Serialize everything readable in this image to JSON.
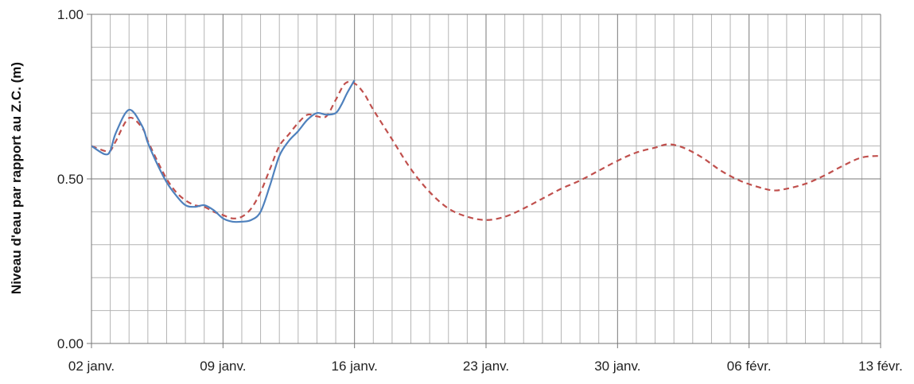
{
  "chart_data": {
    "type": "line",
    "title": "",
    "xlabel": "",
    "ylabel": "Niveau d'eau par rapport au Z.C. (m)",
    "x_tick_labels": [
      "02 janv.",
      "09 janv.",
      "16 janv.",
      "23 janv.",
      "30 janv.",
      "06 févr.",
      "13 févr."
    ],
    "x_tick_days": [
      0,
      7,
      14,
      21,
      28,
      35,
      42
    ],
    "y_tick_labels": [
      "0.00",
      "0.50",
      "1.00"
    ],
    "y_ticks": [
      0,
      0.5,
      1.0
    ],
    "xlim_days": [
      0,
      42
    ],
    "ylim": [
      0,
      1.0
    ],
    "grid": true,
    "legend": "none",
    "series": [
      {
        "color": "#4f81bd",
        "style": "solid",
        "x_days": [
          0,
          0.7,
          1.0,
          1.3,
          2.0,
          2.7,
          3.0,
          3.5,
          4.0,
          4.5,
          5.0,
          5.5,
          6.0,
          6.5,
          7.0,
          7.5,
          8.0,
          8.5,
          9.0,
          9.5,
          10.0,
          10.5,
          11.0,
          11.5,
          12.0,
          12.5,
          13.0,
          13.3,
          13.6,
          14.0
        ],
        "y": [
          0.6,
          0.575,
          0.585,
          0.64,
          0.71,
          0.66,
          0.61,
          0.545,
          0.49,
          0.45,
          0.42,
          0.415,
          0.42,
          0.405,
          0.38,
          0.37,
          0.37,
          0.375,
          0.4,
          0.48,
          0.57,
          0.615,
          0.645,
          0.68,
          0.7,
          0.695,
          0.7,
          0.725,
          0.76,
          0.8
        ]
      },
      {
        "color": "#c0504d",
        "style": "dashed",
        "x_days": [
          0,
          0.7,
          1.0,
          1.3,
          2.0,
          2.7,
          3.0,
          3.5,
          4.0,
          4.5,
          5.0,
          5.5,
          6.0,
          6.5,
          7.0,
          7.5,
          8.0,
          8.5,
          9.0,
          9.5,
          10.0,
          10.5,
          11.0,
          11.5,
          12.0,
          12.5,
          13.0,
          13.5,
          14.0,
          14.5,
          15.0,
          16.0,
          17.0,
          18.0,
          19.0,
          20.0,
          21.0,
          22.0,
          23.0,
          24.0,
          25.0,
          26.0,
          27.0,
          28.0,
          29.0,
          30.0,
          30.7,
          31.5,
          32.5,
          33.5,
          34.5,
          35.5,
          36.3,
          37.0,
          38.0,
          39.0,
          40.0,
          41.0,
          42.0
        ],
        "y": [
          0.6,
          0.585,
          0.585,
          0.615,
          0.685,
          0.655,
          0.615,
          0.555,
          0.5,
          0.46,
          0.435,
          0.42,
          0.415,
          0.4,
          0.39,
          0.38,
          0.385,
          0.41,
          0.46,
          0.53,
          0.6,
          0.635,
          0.67,
          0.695,
          0.69,
          0.69,
          0.74,
          0.79,
          0.79,
          0.76,
          0.71,
          0.62,
          0.53,
          0.46,
          0.41,
          0.385,
          0.375,
          0.385,
          0.41,
          0.44,
          0.47,
          0.495,
          0.525,
          0.555,
          0.58,
          0.595,
          0.605,
          0.595,
          0.565,
          0.525,
          0.495,
          0.475,
          0.465,
          0.47,
          0.485,
          0.51,
          0.54,
          0.565,
          0.57
        ]
      }
    ]
  }
}
